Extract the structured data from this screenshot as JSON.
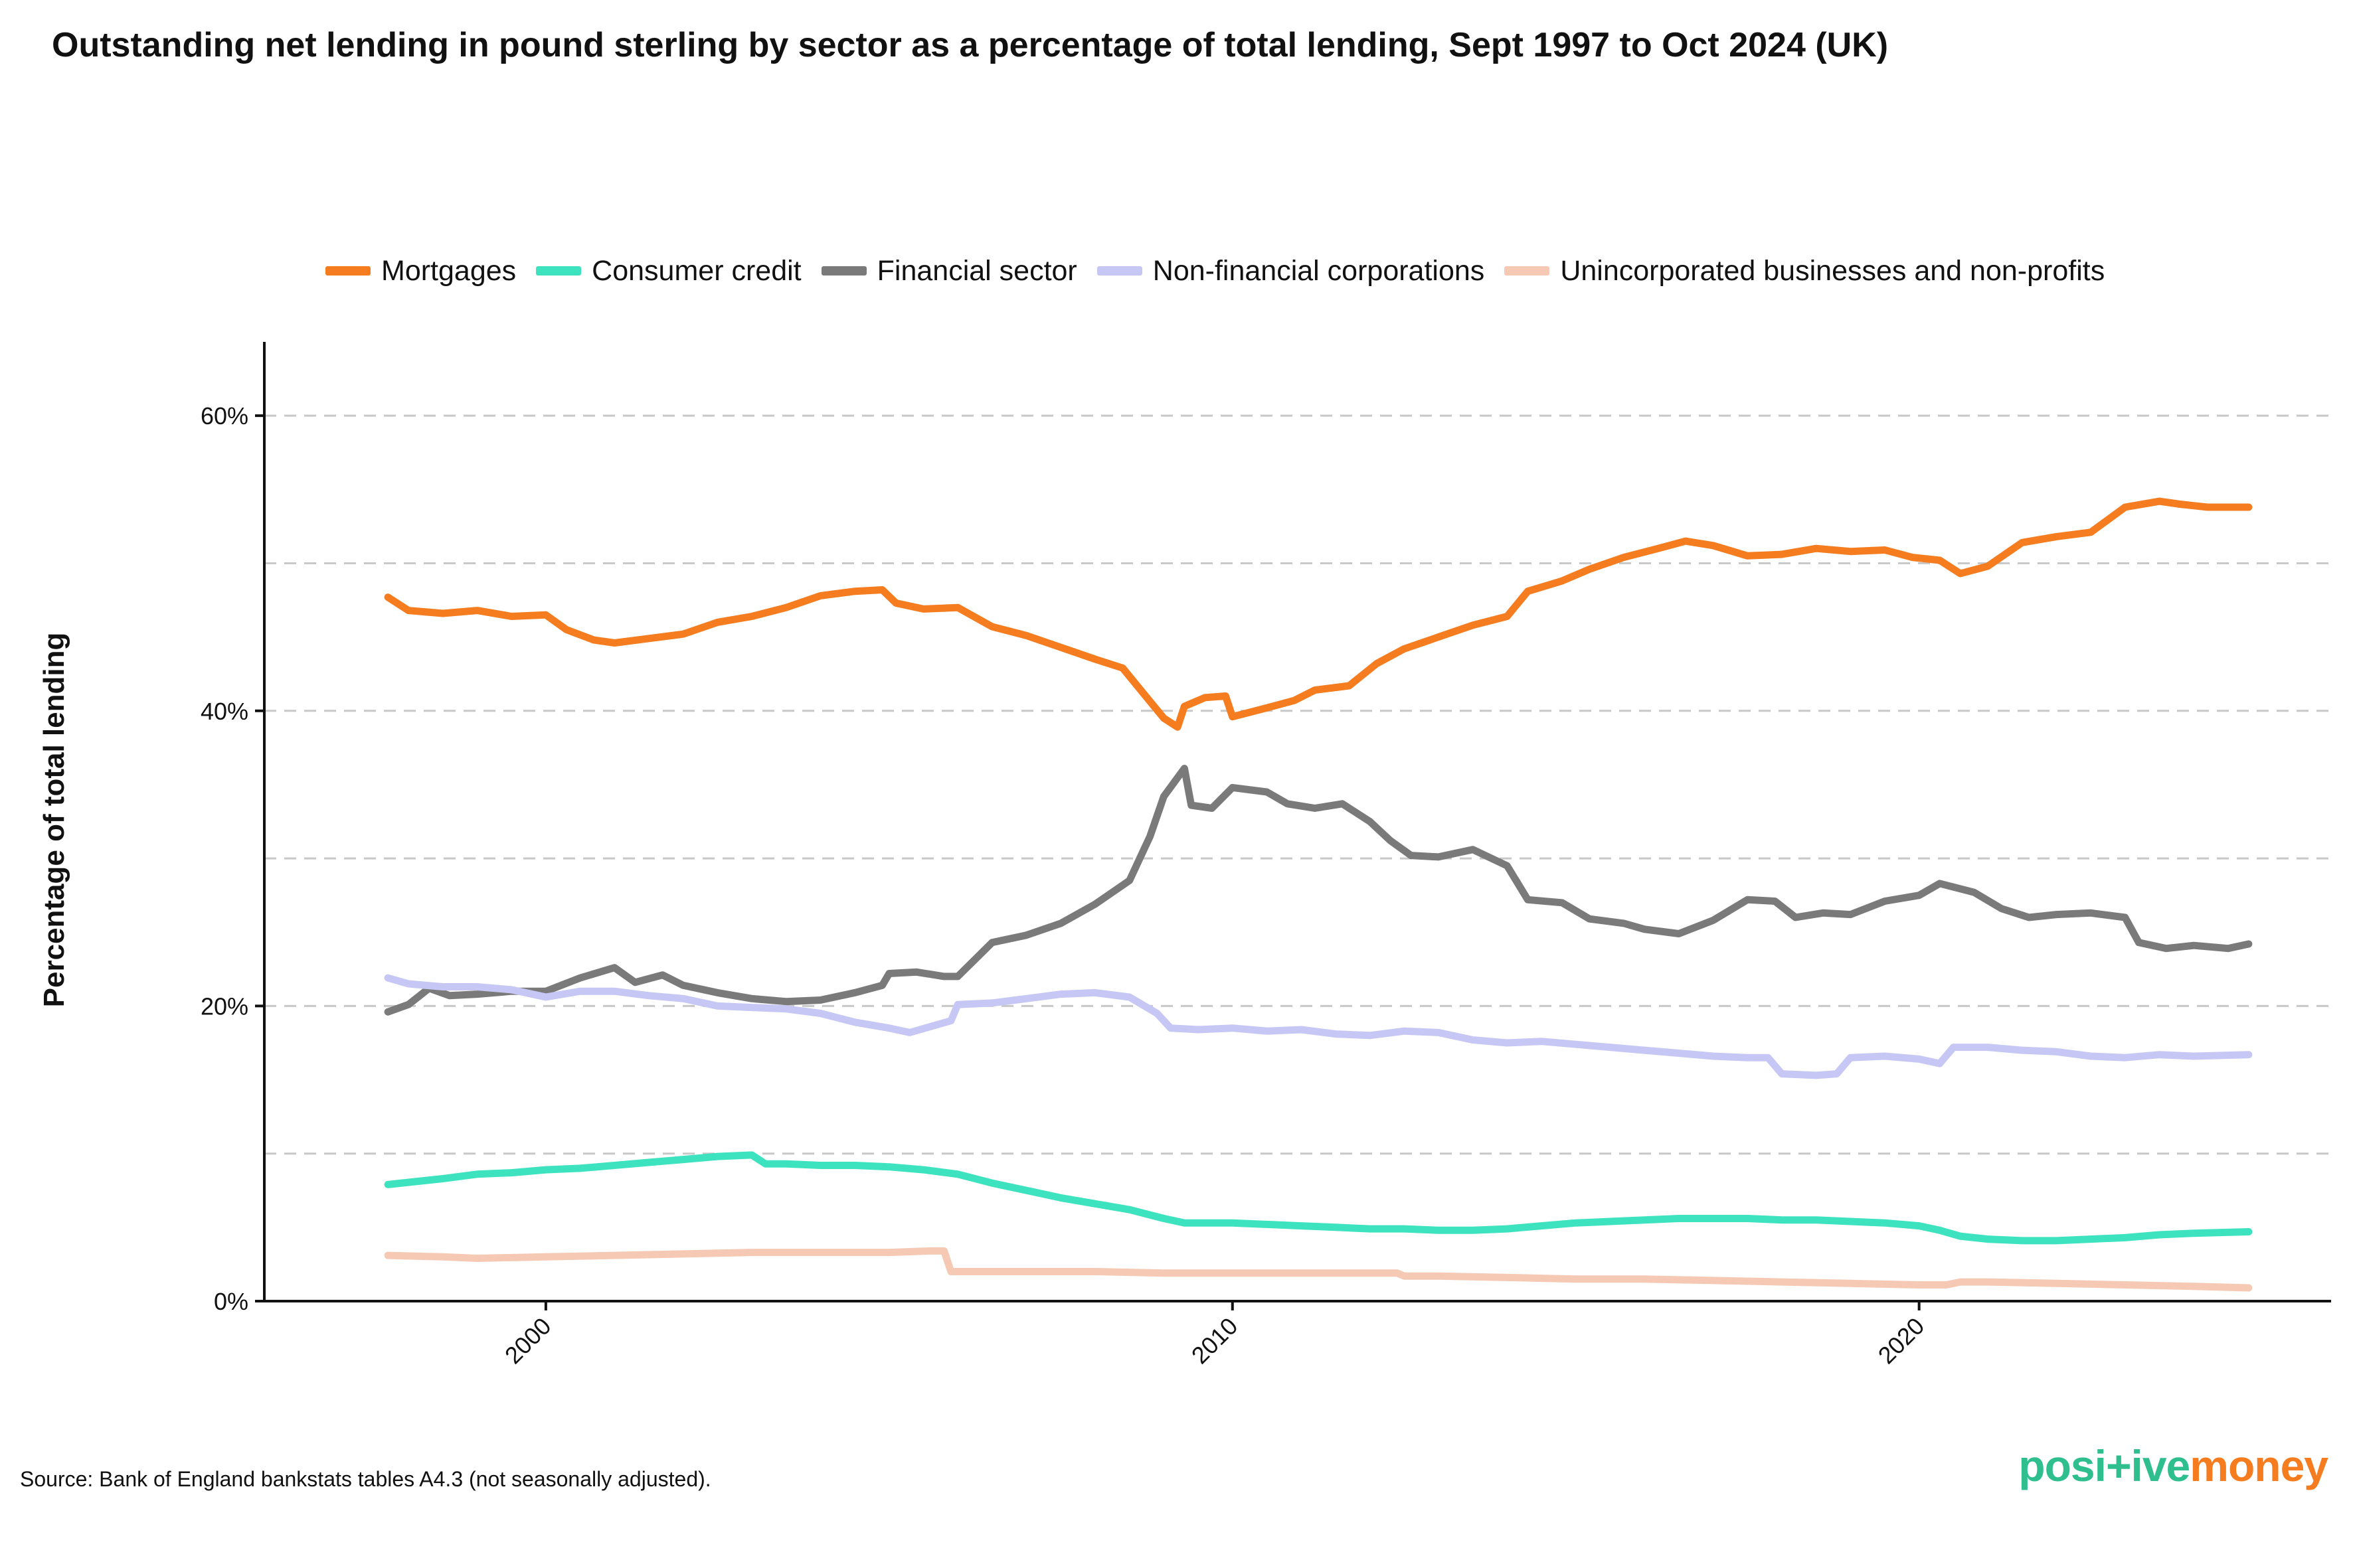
{
  "title": "Outstanding net lending in pound sterling by sector as a percentage of total lending, Sept 1997 to Oct 2024 (UK)",
  "source": "Source: Bank of England bankstats tables A4.3 (not seasonally adjusted).",
  "logo": {
    "part1": "posi",
    "part2": "+ive",
    "part3": "money",
    "color_green": "#2fbf8f",
    "color_orange": "#f57c1f"
  },
  "chart_data": {
    "type": "line",
    "ylabel": "Percentage of total lending",
    "xlabel": "",
    "xlim": [
      1995.9,
      2026.0
    ],
    "ylim": [
      0,
      65
    ],
    "grid": "horizontal dashed",
    "legend_position": "top",
    "x_ticks": [
      2000,
      2010,
      2020
    ],
    "x_tick_labels": [
      "2000",
      "2010",
      "2020"
    ],
    "y_ticks": [
      0,
      20,
      40,
      60
    ],
    "y_tick_labels": [
      "0%",
      "20%",
      "40%",
      "60%"
    ],
    "series": [
      {
        "name": "Mortgages",
        "color": "#f57c1f",
        "points": [
          [
            1997.7,
            47.7
          ],
          [
            1998.0,
            46.8
          ],
          [
            1998.5,
            46.6
          ],
          [
            1999.0,
            46.8
          ],
          [
            1999.5,
            46.4
          ],
          [
            2000.0,
            46.5
          ],
          [
            2000.3,
            45.5
          ],
          [
            2000.7,
            44.8
          ],
          [
            2001.0,
            44.6
          ],
          [
            2001.5,
            44.9
          ],
          [
            2002.0,
            45.2
          ],
          [
            2002.5,
            46.0
          ],
          [
            2003.0,
            46.4
          ],
          [
            2003.5,
            47.0
          ],
          [
            2004.0,
            47.8
          ],
          [
            2004.5,
            48.1
          ],
          [
            2004.9,
            48.2
          ],
          [
            2005.1,
            47.3
          ],
          [
            2005.5,
            46.9
          ],
          [
            2006.0,
            47.0
          ],
          [
            2006.5,
            45.7
          ],
          [
            2007.0,
            45.1
          ],
          [
            2007.5,
            44.3
          ],
          [
            2008.0,
            43.5
          ],
          [
            2008.4,
            42.9
          ],
          [
            2008.7,
            41.2
          ],
          [
            2009.0,
            39.5
          ],
          [
            2009.2,
            38.9
          ],
          [
            2009.3,
            40.3
          ],
          [
            2009.6,
            40.9
          ],
          [
            2009.9,
            41.0
          ],
          [
            2010.0,
            39.6
          ],
          [
            2010.5,
            40.2
          ],
          [
            2010.9,
            40.7
          ],
          [
            2011.2,
            41.4
          ],
          [
            2011.7,
            41.7
          ],
          [
            2012.1,
            43.2
          ],
          [
            2012.5,
            44.2
          ],
          [
            2013.0,
            45.0
          ],
          [
            2013.5,
            45.8
          ],
          [
            2014.0,
            46.4
          ],
          [
            2014.3,
            48.1
          ],
          [
            2014.8,
            48.8
          ],
          [
            2015.2,
            49.6
          ],
          [
            2015.7,
            50.4
          ],
          [
            2016.2,
            51.0
          ],
          [
            2016.6,
            51.5
          ],
          [
            2017.0,
            51.2
          ],
          [
            2017.5,
            50.5
          ],
          [
            2018.0,
            50.6
          ],
          [
            2018.5,
            51.0
          ],
          [
            2019.0,
            50.8
          ],
          [
            2019.5,
            50.9
          ],
          [
            2019.9,
            50.4
          ],
          [
            2020.3,
            50.2
          ],
          [
            2020.6,
            49.3
          ],
          [
            2021.0,
            49.8
          ],
          [
            2021.5,
            51.4
          ],
          [
            2022.0,
            51.8
          ],
          [
            2022.5,
            52.1
          ],
          [
            2023.0,
            53.8
          ],
          [
            2023.5,
            54.2
          ],
          [
            2023.8,
            54.0
          ],
          [
            2024.2,
            53.8
          ],
          [
            2024.8,
            53.8
          ]
        ]
      },
      {
        "name": "Consumer credit",
        "color": "#3de3bf",
        "points": [
          [
            1997.7,
            7.9
          ],
          [
            1998.5,
            8.3
          ],
          [
            1999.0,
            8.6
          ],
          [
            1999.5,
            8.7
          ],
          [
            2000.0,
            8.9
          ],
          [
            2000.5,
            9.0
          ],
          [
            2001.0,
            9.2
          ],
          [
            2001.5,
            9.4
          ],
          [
            2002.0,
            9.6
          ],
          [
            2002.5,
            9.8
          ],
          [
            2003.0,
            9.9
          ],
          [
            2003.2,
            9.3
          ],
          [
            2003.5,
            9.3
          ],
          [
            2004.0,
            9.2
          ],
          [
            2004.5,
            9.2
          ],
          [
            2005.0,
            9.1
          ],
          [
            2005.5,
            8.9
          ],
          [
            2006.0,
            8.6
          ],
          [
            2006.5,
            8.0
          ],
          [
            2007.0,
            7.5
          ],
          [
            2007.5,
            7.0
          ],
          [
            2008.0,
            6.6
          ],
          [
            2008.5,
            6.2
          ],
          [
            2009.0,
            5.6
          ],
          [
            2009.3,
            5.3
          ],
          [
            2010.0,
            5.3
          ],
          [
            2010.5,
            5.2
          ],
          [
            2011.0,
            5.1
          ],
          [
            2011.5,
            5.0
          ],
          [
            2012.0,
            4.9
          ],
          [
            2012.5,
            4.9
          ],
          [
            2013.0,
            4.8
          ],
          [
            2013.5,
            4.8
          ],
          [
            2014.0,
            4.9
          ],
          [
            2014.5,
            5.1
          ],
          [
            2015.0,
            5.3
          ],
          [
            2015.5,
            5.4
          ],
          [
            2016.0,
            5.5
          ],
          [
            2016.5,
            5.6
          ],
          [
            2017.0,
            5.6
          ],
          [
            2017.5,
            5.6
          ],
          [
            2018.0,
            5.5
          ],
          [
            2018.5,
            5.5
          ],
          [
            2019.0,
            5.4
          ],
          [
            2019.5,
            5.3
          ],
          [
            2020.0,
            5.1
          ],
          [
            2020.3,
            4.8
          ],
          [
            2020.6,
            4.4
          ],
          [
            2021.0,
            4.2
          ],
          [
            2021.5,
            4.1
          ],
          [
            2022.0,
            4.1
          ],
          [
            2022.5,
            4.2
          ],
          [
            2023.0,
            4.3
          ],
          [
            2023.5,
            4.5
          ],
          [
            2024.0,
            4.6
          ],
          [
            2024.8,
            4.7
          ]
        ]
      },
      {
        "name": "Financial sector",
        "color": "#7a7a7a",
        "points": [
          [
            1997.7,
            19.6
          ],
          [
            1998.0,
            20.1
          ],
          [
            1998.3,
            21.2
          ],
          [
            1998.6,
            20.7
          ],
          [
            1999.0,
            20.8
          ],
          [
            1999.5,
            21.0
          ],
          [
            2000.0,
            21.0
          ],
          [
            2000.5,
            21.9
          ],
          [
            2001.0,
            22.6
          ],
          [
            2001.3,
            21.6
          ],
          [
            2001.7,
            22.1
          ],
          [
            2002.0,
            21.4
          ],
          [
            2002.5,
            20.9
          ],
          [
            2003.0,
            20.5
          ],
          [
            2003.5,
            20.3
          ],
          [
            2004.0,
            20.4
          ],
          [
            2004.5,
            20.9
          ],
          [
            2004.9,
            21.4
          ],
          [
            2005.0,
            22.2
          ],
          [
            2005.4,
            22.3
          ],
          [
            2005.8,
            22.0
          ],
          [
            2006.0,
            22.0
          ],
          [
            2006.5,
            24.3
          ],
          [
            2007.0,
            24.8
          ],
          [
            2007.5,
            25.6
          ],
          [
            2008.0,
            26.9
          ],
          [
            2008.5,
            28.5
          ],
          [
            2008.8,
            31.5
          ],
          [
            2009.0,
            34.2
          ],
          [
            2009.3,
            36.1
          ],
          [
            2009.4,
            33.6
          ],
          [
            2009.7,
            33.4
          ],
          [
            2010.0,
            34.8
          ],
          [
            2010.5,
            34.5
          ],
          [
            2010.8,
            33.7
          ],
          [
            2011.2,
            33.4
          ],
          [
            2011.6,
            33.7
          ],
          [
            2012.0,
            32.5
          ],
          [
            2012.3,
            31.2
          ],
          [
            2012.6,
            30.2
          ],
          [
            2013.0,
            30.1
          ],
          [
            2013.5,
            30.6
          ],
          [
            2014.0,
            29.5
          ],
          [
            2014.3,
            27.2
          ],
          [
            2014.8,
            27.0
          ],
          [
            2015.2,
            25.9
          ],
          [
            2015.7,
            25.6
          ],
          [
            2016.0,
            25.2
          ],
          [
            2016.5,
            24.9
          ],
          [
            2017.0,
            25.8
          ],
          [
            2017.5,
            27.2
          ],
          [
            2017.9,
            27.1
          ],
          [
            2018.2,
            26.0
          ],
          [
            2018.6,
            26.3
          ],
          [
            2019.0,
            26.2
          ],
          [
            2019.5,
            27.1
          ],
          [
            2020.0,
            27.5
          ],
          [
            2020.3,
            28.3
          ],
          [
            2020.8,
            27.7
          ],
          [
            2021.2,
            26.6
          ],
          [
            2021.6,
            26.0
          ],
          [
            2022.0,
            26.2
          ],
          [
            2022.5,
            26.3
          ],
          [
            2023.0,
            26.0
          ],
          [
            2023.2,
            24.3
          ],
          [
            2023.6,
            23.9
          ],
          [
            2024.0,
            24.1
          ],
          [
            2024.5,
            23.9
          ],
          [
            2024.8,
            24.2
          ]
        ]
      },
      {
        "name": "Non-financial corporations",
        "color": "#c7c7f5",
        "points": [
          [
            1997.7,
            21.9
          ],
          [
            1998.0,
            21.5
          ],
          [
            1998.5,
            21.3
          ],
          [
            1999.0,
            21.3
          ],
          [
            1999.5,
            21.1
          ],
          [
            2000.0,
            20.6
          ],
          [
            2000.5,
            21.0
          ],
          [
            2001.0,
            21.0
          ],
          [
            2001.5,
            20.7
          ],
          [
            2002.0,
            20.5
          ],
          [
            2002.5,
            20.0
          ],
          [
            2003.0,
            19.9
          ],
          [
            2003.5,
            19.8
          ],
          [
            2004.0,
            19.5
          ],
          [
            2004.5,
            18.9
          ],
          [
            2005.0,
            18.5
          ],
          [
            2005.3,
            18.2
          ],
          [
            2005.6,
            18.6
          ],
          [
            2005.9,
            19.0
          ],
          [
            2006.0,
            20.1
          ],
          [
            2006.5,
            20.2
          ],
          [
            2007.0,
            20.5
          ],
          [
            2007.5,
            20.8
          ],
          [
            2008.0,
            20.9
          ],
          [
            2008.5,
            20.6
          ],
          [
            2008.9,
            19.5
          ],
          [
            2009.1,
            18.5
          ],
          [
            2009.5,
            18.4
          ],
          [
            2010.0,
            18.5
          ],
          [
            2010.5,
            18.3
          ],
          [
            2011.0,
            18.4
          ],
          [
            2011.5,
            18.1
          ],
          [
            2012.0,
            18.0
          ],
          [
            2012.5,
            18.3
          ],
          [
            2013.0,
            18.2
          ],
          [
            2013.5,
            17.7
          ],
          [
            2014.0,
            17.5
          ],
          [
            2014.5,
            17.6
          ],
          [
            2015.0,
            17.4
          ],
          [
            2015.5,
            17.2
          ],
          [
            2016.0,
            17.0
          ],
          [
            2016.5,
            16.8
          ],
          [
            2017.0,
            16.6
          ],
          [
            2017.5,
            16.5
          ],
          [
            2017.8,
            16.5
          ],
          [
            2018.0,
            15.4
          ],
          [
            2018.5,
            15.3
          ],
          [
            2018.8,
            15.4
          ],
          [
            2019.0,
            16.5
          ],
          [
            2019.5,
            16.6
          ],
          [
            2020.0,
            16.4
          ],
          [
            2020.3,
            16.1
          ],
          [
            2020.5,
            17.2
          ],
          [
            2021.0,
            17.2
          ],
          [
            2021.5,
            17.0
          ],
          [
            2022.0,
            16.9
          ],
          [
            2022.5,
            16.6
          ],
          [
            2023.0,
            16.5
          ],
          [
            2023.5,
            16.7
          ],
          [
            2024.0,
            16.6
          ],
          [
            2024.8,
            16.7
          ]
        ]
      },
      {
        "name": "Unincorporated businesses and non-profits",
        "color": "#f5c9b3",
        "points": [
          [
            1997.7,
            3.1
          ],
          [
            1998.5,
            3.0
          ],
          [
            1999.0,
            2.9
          ],
          [
            2000.0,
            3.0
          ],
          [
            2001.0,
            3.1
          ],
          [
            2002.0,
            3.2
          ],
          [
            2003.0,
            3.3
          ],
          [
            2004.0,
            3.3
          ],
          [
            2005.0,
            3.3
          ],
          [
            2005.6,
            3.4
          ],
          [
            2005.8,
            3.4
          ],
          [
            2005.9,
            2.0
          ],
          [
            2006.5,
            2.0
          ],
          [
            2007.0,
            2.0
          ],
          [
            2008.0,
            2.0
          ],
          [
            2009.0,
            1.9
          ],
          [
            2010.0,
            1.9
          ],
          [
            2011.0,
            1.9
          ],
          [
            2012.0,
            1.9
          ],
          [
            2012.4,
            1.9
          ],
          [
            2012.5,
            1.7
          ],
          [
            2013.0,
            1.7
          ],
          [
            2014.0,
            1.6
          ],
          [
            2015.0,
            1.5
          ],
          [
            2016.0,
            1.5
          ],
          [
            2017.0,
            1.4
          ],
          [
            2018.0,
            1.3
          ],
          [
            2019.0,
            1.2
          ],
          [
            2020.0,
            1.1
          ],
          [
            2020.4,
            1.1
          ],
          [
            2020.6,
            1.3
          ],
          [
            2021.0,
            1.3
          ],
          [
            2022.0,
            1.2
          ],
          [
            2023.0,
            1.1
          ],
          [
            2024.0,
            1.0
          ],
          [
            2024.8,
            0.9
          ]
        ]
      }
    ]
  }
}
